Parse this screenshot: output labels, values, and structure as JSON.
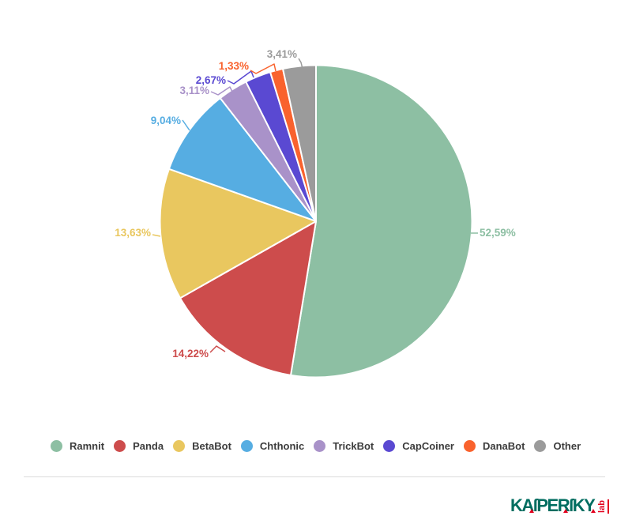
{
  "page": {
    "background": "#ffffff"
  },
  "chart_data": {
    "type": "pie",
    "title": "",
    "unit": "%",
    "decimal_separator": ",",
    "start_angle_deg": 0,
    "direction": "clockwise",
    "legend_position": "bottom",
    "slices": [
      {
        "name": "Ramnit",
        "value": 52.59,
        "label": "52,59%",
        "color": "#8dbfa3"
      },
      {
        "name": "Panda",
        "value": 14.22,
        "label": "14,22%",
        "color": "#cd4c4c"
      },
      {
        "name": "BetaBot",
        "value": 13.63,
        "label": "13,63%",
        "color": "#e9c75f"
      },
      {
        "name": "Chthonic",
        "value": 9.04,
        "label": "9,04%",
        "color": "#56ade2"
      },
      {
        "name": "TrickBot",
        "value": 3.11,
        "label": "3,11%",
        "color": "#a992c9"
      },
      {
        "name": "CapCoiner",
        "value": 2.67,
        "label": "2,67%",
        "color": "#5a49d2"
      },
      {
        "name": "DanaBot",
        "value": 1.33,
        "label": "1,33%",
        "color": "#f9622d"
      },
      {
        "name": "Other",
        "value": 3.41,
        "label": "3,41%",
        "color": "#9b9b9b"
      }
    ]
  },
  "footer": {
    "brand": "Kaspersky Lab",
    "logo_word": "KASPERSKY",
    "logo_word_display": "KAſPERſKY",
    "logo_sub": "lab",
    "logo_color": "#006d60",
    "logo_red": "#e3001e"
  }
}
